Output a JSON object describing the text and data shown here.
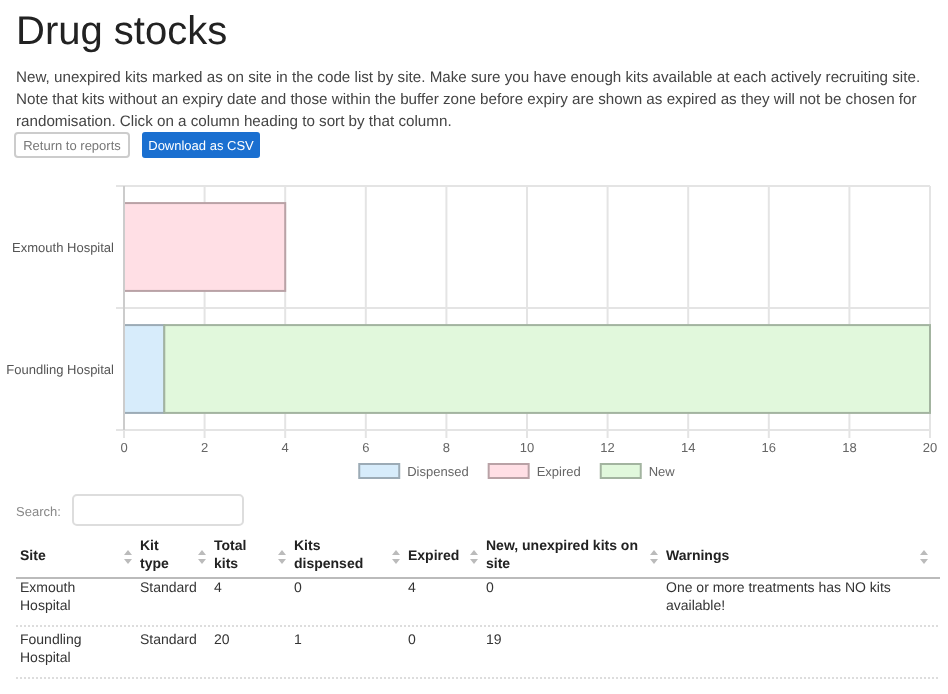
{
  "chart_data": {
    "type": "bar",
    "orientation": "horizontal",
    "stacked": true,
    "title": "Drug stocks",
    "subtitle": "New, unexpired kits marked as on site in the code list by site. Make sure you have enough kits available at each actively recruiting site. Note that kits without an expiry date and those within the buffer zone before expiry are shown as expired as they will not be chosen for randomisation. Click on a column heading to sort by that column.",
    "categories": [
      "Exmouth Hospital",
      "Foundling Hospital"
    ],
    "series": [
      {
        "name": "Dispensed",
        "color": "#d7ecfb",
        "values": [
          0,
          1
        ]
      },
      {
        "name": "Expired",
        "color": "#ffdfe5",
        "values": [
          4,
          0
        ]
      },
      {
        "name": "New",
        "color": "#e1f8dc",
        "values": [
          0,
          19
        ]
      }
    ],
    "xlim": [
      0,
      20
    ],
    "xticks": [
      0,
      2,
      4,
      6,
      8,
      10,
      12,
      14,
      16,
      18,
      20
    ],
    "grid": true,
    "legend": "bottom",
    "annotations": [
      "Return to reports",
      "Download as CSV",
      "Search:",
      "Site",
      "Kit type",
      "Total kits",
      "Kits dispensed",
      "Expired",
      "New, unexpired kits on site",
      "Warnings",
      "Exmouth Hospital",
      "Standard",
      "4",
      "0",
      "4",
      "0",
      "One or more treatments has NO kits available!",
      "Foundling Hospital",
      "Standard",
      "20",
      "1",
      "0",
      "19"
    ]
  }
}
